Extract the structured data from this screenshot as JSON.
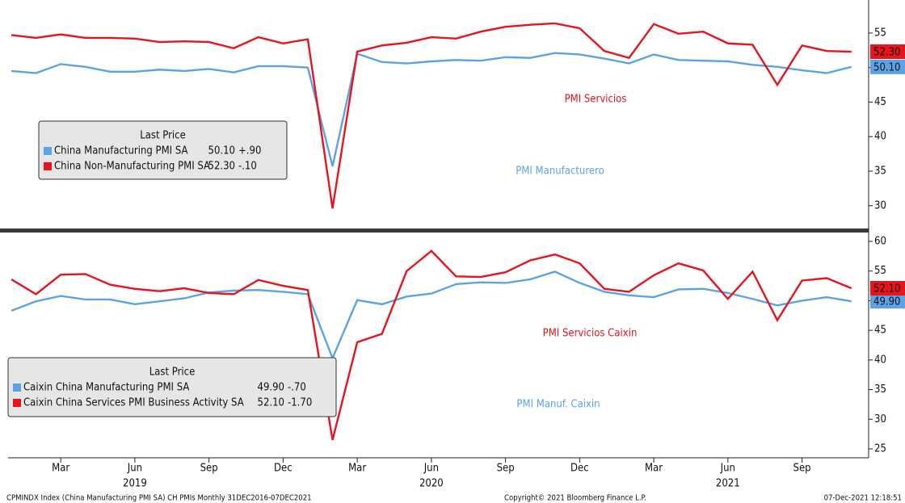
{
  "chart_data": [
    {
      "type": "line",
      "x": [
        "2019-01",
        "2019-02",
        "2019-03",
        "2019-04",
        "2019-05",
        "2019-06",
        "2019-07",
        "2019-08",
        "2019-09",
        "2019-10",
        "2019-11",
        "2019-12",
        "2020-01",
        "2020-02",
        "2020-03",
        "2020-04",
        "2020-05",
        "2020-06",
        "2020-07",
        "2020-08",
        "2020-09",
        "2020-10",
        "2020-11",
        "2020-12",
        "2021-01",
        "2021-02",
        "2021-03",
        "2021-04",
        "2021-05",
        "2021-06",
        "2021-07",
        "2021-08",
        "2021-09",
        "2021-10",
        "2021-11"
      ],
      "ylim": [
        26.7,
        59.2
      ],
      "yticks": [
        30,
        35,
        40,
        45,
        50,
        55
      ],
      "series": [
        {
          "name": "China Manufacturing PMI SA",
          "color": "#5ba3e6",
          "last_label": "50.10",
          "change": "+.90",
          "values": [
            49.5,
            49.2,
            50.5,
            50.1,
            49.4,
            49.4,
            49.7,
            49.5,
            49.8,
            49.3,
            50.2,
            50.2,
            50.0,
            35.7,
            52.0,
            50.8,
            50.6,
            50.9,
            51.1,
            51.0,
            51.5,
            51.4,
            52.1,
            51.9,
            51.3,
            50.6,
            51.9,
            51.1,
            51.0,
            50.9,
            50.4,
            50.1,
            49.6,
            49.2,
            50.1
          ]
        },
        {
          "name": "China Non-Manufacturing PMI SA",
          "color": "#e8141c",
          "last_label": "52.30",
          "change": "-.10",
          "values": [
            54.7,
            54.3,
            54.8,
            54.3,
            54.3,
            54.2,
            53.7,
            53.8,
            53.7,
            52.8,
            54.4,
            53.5,
            54.1,
            29.6,
            52.3,
            53.2,
            53.6,
            54.4,
            54.2,
            55.2,
            55.9,
            56.2,
            56.4,
            55.7,
            52.4,
            51.4,
            56.3,
            54.9,
            55.2,
            53.5,
            53.3,
            47.5,
            53.2,
            52.4,
            52.3
          ]
        }
      ],
      "legend": {
        "title": "Last Price"
      },
      "annotations": [
        {
          "text": "PMI Servicios",
          "color": "#e8141c"
        },
        {
          "text": "PMI Manufacturero",
          "color": "#5ba3e6"
        }
      ]
    },
    {
      "type": "line",
      "x": [
        "2019-01",
        "2019-02",
        "2019-03",
        "2019-04",
        "2019-05",
        "2019-06",
        "2019-07",
        "2019-08",
        "2019-09",
        "2019-10",
        "2019-11",
        "2019-12",
        "2020-01",
        "2020-02",
        "2020-03",
        "2020-04",
        "2020-05",
        "2020-06",
        "2020-07",
        "2020-08",
        "2020-09",
        "2020-10",
        "2020-11",
        "2020-12",
        "2021-01",
        "2021-02",
        "2021-03",
        "2021-04",
        "2021-05",
        "2021-06",
        "2021-07",
        "2021-08",
        "2021-09",
        "2021-10",
        "2021-11"
      ],
      "ylim": [
        23.5,
        61.5
      ],
      "yticks": [
        25,
        30,
        35,
        40,
        45,
        50,
        55,
        60
      ],
      "series": [
        {
          "name": "Caixin China Manufacturing PMI SA",
          "color": "#5ba3e6",
          "last_label": "49.90",
          "change": "-.70",
          "values": [
            48.3,
            49.9,
            50.8,
            50.2,
            50.2,
            49.4,
            49.9,
            50.4,
            51.4,
            51.7,
            51.8,
            51.5,
            51.1,
            40.3,
            50.1,
            49.4,
            50.7,
            51.2,
            52.8,
            53.1,
            53.0,
            53.6,
            54.9,
            53.0,
            51.5,
            50.9,
            50.6,
            51.9,
            52.0,
            51.3,
            50.3,
            49.2,
            50.0,
            50.6,
            49.9
          ]
        },
        {
          "name": "Caixin China Services PMI Business Activity SA",
          "color": "#e8141c",
          "last_label": "52.10",
          "change": "-1.70",
          "values": [
            53.6,
            51.1,
            54.4,
            54.5,
            52.7,
            52.0,
            51.6,
            52.1,
            51.3,
            51.1,
            53.5,
            52.5,
            51.8,
            26.5,
            43.0,
            44.4,
            55.0,
            58.4,
            54.1,
            54.0,
            54.8,
            56.8,
            57.8,
            56.3,
            52.0,
            51.5,
            54.3,
            56.3,
            55.1,
            50.3,
            54.9,
            46.7,
            53.4,
            53.8,
            52.1
          ]
        }
      ],
      "legend": {
        "title": "Last Price"
      },
      "annotations": [
        {
          "text": "PMI Servicios Caixin",
          "color": "#e8141c"
        },
        {
          "text": "PMI Manuf. Caixin",
          "color": "#5ba3e6"
        }
      ],
      "xticks": [
        {
          "value": "2019-03",
          "label": "Mar"
        },
        {
          "value": "2019-06",
          "label": "Jun"
        },
        {
          "value": "2019-09",
          "label": "Sep"
        },
        {
          "value": "2019-12",
          "label": "Dec"
        },
        {
          "value": "2020-03",
          "label": "Mar"
        },
        {
          "value": "2020-06",
          "label": "Jun"
        },
        {
          "value": "2020-09",
          "label": "Sep"
        },
        {
          "value": "2020-12",
          "label": "Dec"
        },
        {
          "value": "2021-03",
          "label": "Mar"
        },
        {
          "value": "2021-06",
          "label": "Jun"
        },
        {
          "value": "2021-09",
          "label": "Sep"
        }
      ],
      "year_ticks": [
        {
          "value": "2019-06",
          "label": "2019"
        },
        {
          "value": "2020-06",
          "label": "2020"
        },
        {
          "value": "2021-06",
          "label": "2021"
        }
      ]
    }
  ],
  "footer": {
    "left": "CPMINDX Index (China Manufacturing PMI SA) CH PMIs  Monthly 31DEC2016-07DEC2021",
    "center": "Copyright© 2021 Bloomberg Finance L.P.",
    "right": "07-Dec-2021 12:18:51"
  }
}
